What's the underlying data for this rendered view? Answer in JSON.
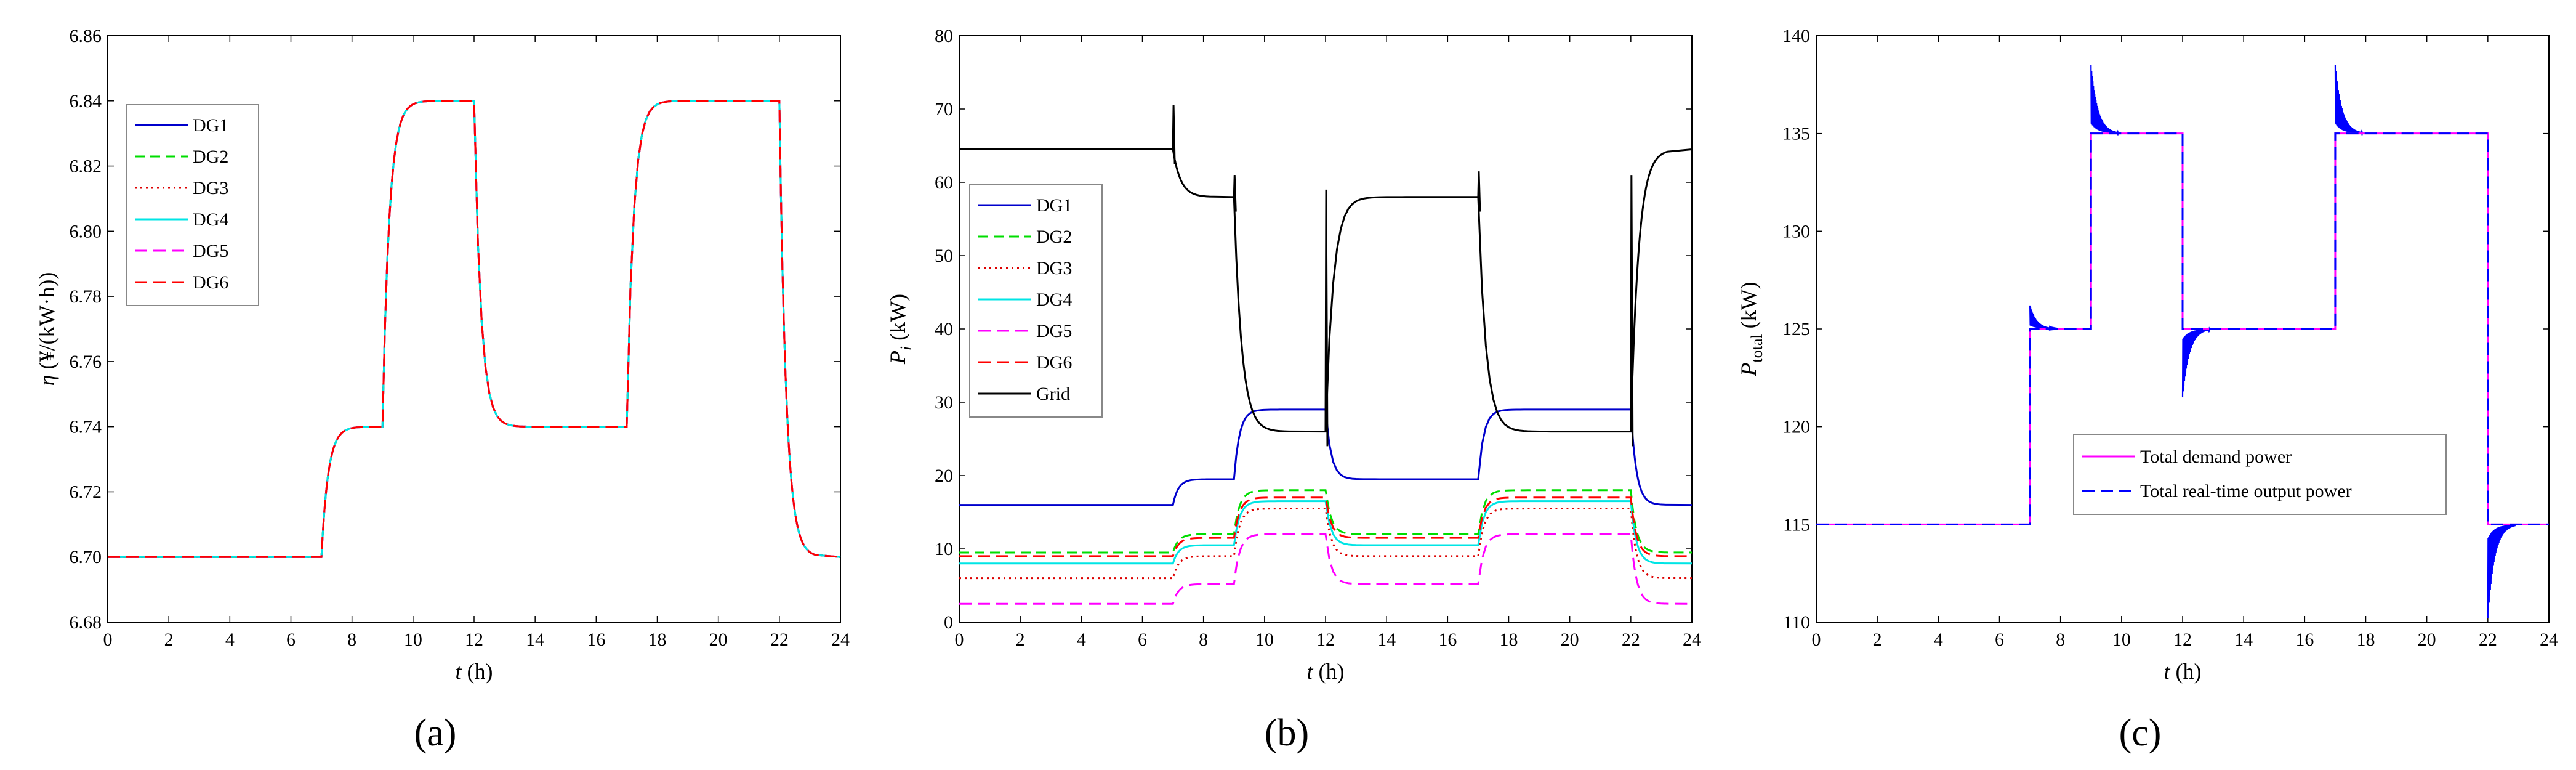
{
  "panel_labels": [
    "(a)",
    "(b)",
    "(c)"
  ],
  "colors": {
    "DG1": "#0000cc",
    "DG2": "#00dd00",
    "DG3": "#dd0000",
    "DG4": "#00e5e5",
    "DG5": "#ff00ff",
    "DG6": "#ff0000",
    "Grid": "#000000",
    "demand": "#ff00ff",
    "realtime": "#0000ff"
  },
  "chart_data": [
    {
      "type": "line",
      "panel": "(a)",
      "ylabel": "η (¥/(kW·h))",
      "xlabel": "t (h)",
      "xlim": [
        0,
        24
      ],
      "ylim": [
        6.68,
        6.86
      ],
      "xticks": [
        0,
        2,
        4,
        6,
        8,
        10,
        12,
        14,
        16,
        18,
        20,
        22,
        24
      ],
      "yticks": [
        "6.68",
        "6.70",
        "6.72",
        "6.74",
        "6.76",
        "6.78",
        "6.80",
        "6.82",
        "6.84",
        "6.86"
      ],
      "legend": [
        "DG1",
        "DG2",
        "DG3",
        "DG4",
        "DG5",
        "DG6"
      ],
      "legend_position": "upper-left",
      "segments": [
        {
          "t0": 0,
          "t1": 7,
          "value": 6.7
        },
        {
          "t0": 7,
          "t1": 9,
          "value": 6.74
        },
        {
          "t0": 9,
          "t1": 12,
          "value": 6.84
        },
        {
          "t0": 12,
          "t1": 17,
          "value": 6.74
        },
        {
          "t0": 17,
          "t1": 22,
          "value": 6.84
        },
        {
          "t0": 22,
          "t1": 24,
          "value": 6.7
        }
      ],
      "note": "All six DG incremental cost curves coincide"
    },
    {
      "type": "line",
      "panel": "(b)",
      "ylabel": "Pi (kW)",
      "xlabel": "t (h)",
      "xlim": [
        0,
        24
      ],
      "ylim": [
        0,
        80
      ],
      "xticks": [
        0,
        2,
        4,
        6,
        8,
        10,
        12,
        14,
        16,
        18,
        20,
        22,
        24
      ],
      "yticks": [
        "0",
        "10",
        "20",
        "30",
        "40",
        "50",
        "60",
        "70",
        "80"
      ],
      "legend": [
        "DG1",
        "DG2",
        "DG3",
        "DG4",
        "DG5",
        "DG6",
        "Grid"
      ],
      "legend_position": "left-middle",
      "breakpoints": [
        0,
        7,
        9,
        12,
        17,
        22,
        24
      ],
      "series": [
        {
          "name": "DG1",
          "values": [
            16,
            19.5,
            29,
            19.5,
            29,
            16
          ]
        },
        {
          "name": "DG2",
          "values": [
            9.5,
            12,
            18,
            12,
            18,
            9.5
          ]
        },
        {
          "name": "DG3",
          "values": [
            6,
            9,
            15.5,
            9,
            15.5,
            6
          ]
        },
        {
          "name": "DG4",
          "values": [
            8,
            10.5,
            16.5,
            10.5,
            16.5,
            8
          ]
        },
        {
          "name": "DG5",
          "values": [
            2.5,
            5.2,
            12,
            5.2,
            12,
            2.5
          ]
        },
        {
          "name": "DG6",
          "values": [
            9,
            11.5,
            17,
            11.5,
            17,
            9
          ]
        },
        {
          "name": "Grid",
          "values": [
            64.5,
            58,
            26,
            58,
            26,
            64.5
          ]
        }
      ]
    },
    {
      "type": "line",
      "panel": "(c)",
      "ylabel": "Ptotal (kW)",
      "xlabel": "t (h)",
      "xlim": [
        0,
        24
      ],
      "ylim": [
        110,
        140
      ],
      "xticks": [
        0,
        2,
        4,
        6,
        8,
        10,
        12,
        14,
        16,
        18,
        20,
        22,
        24
      ],
      "yticks": [
        "110",
        "115",
        "120",
        "125",
        "130",
        "135",
        "140"
      ],
      "legend": [
        "Total demand power",
        "Total real-time output power"
      ],
      "legend_position": "center-right",
      "breakpoints": [
        0,
        7,
        9,
        12,
        17,
        22,
        24
      ],
      "series": [
        {
          "name": "Total demand power",
          "values": [
            115,
            125,
            135,
            125,
            135,
            115
          ]
        },
        {
          "name": "Total real-time output power",
          "values": [
            115,
            125,
            135,
            125,
            135,
            115
          ]
        }
      ],
      "transient_peaks": [
        {
          "t": 7,
          "value": 126.2
        },
        {
          "t": 9,
          "value": 138.5
        },
        {
          "t": 12,
          "value": 121.5
        },
        {
          "t": 17,
          "value": 138.5
        },
        {
          "t": 22,
          "value": 110.2
        }
      ]
    }
  ]
}
